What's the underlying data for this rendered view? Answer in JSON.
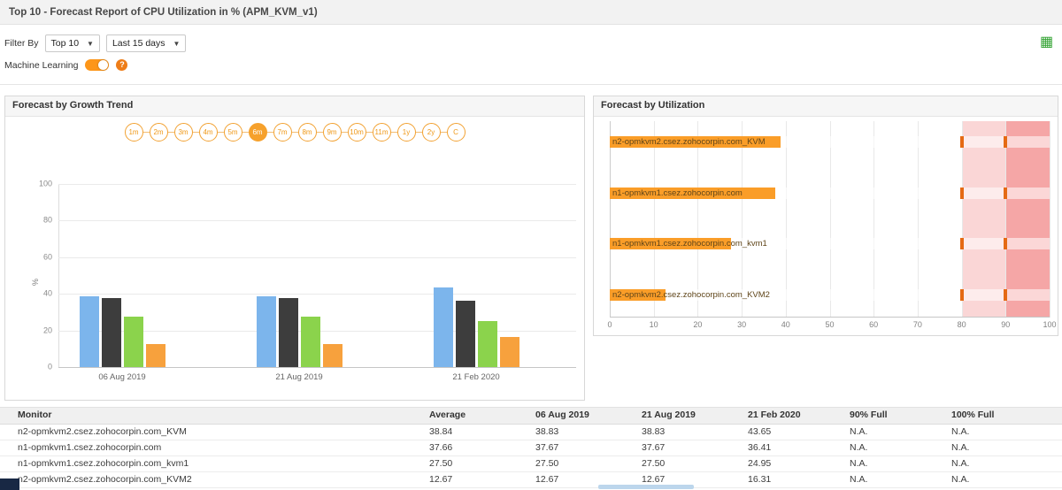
{
  "header": {
    "title": "Top 10 - Forecast Report of CPU Utilization in % (APM_KVM_v1)"
  },
  "toolbar": {
    "filter_by_label": "Filter By",
    "top_filter_value": "Top 10",
    "period_filter_value": "Last 15 days",
    "machine_learning_label": "Machine Learning"
  },
  "icons": {
    "caret_glyph": "▼",
    "export_glyph": "▦",
    "help_glyph": "?"
  },
  "colors": {
    "accent_orange": "#f6a12c",
    "toggle_orange": "#fd9619",
    "series": [
      "#7cb5ec",
      "#3d3d3d",
      "#8bd34c",
      "#f7a13d"
    ],
    "util_bar": "#fa9d28",
    "threshold_mark": "#e56a14",
    "band_warning": "rgba(237,92,92,0.25)",
    "band_critical": "rgba(237,92,92,0.55)"
  },
  "growth_panel": {
    "title": "Forecast by Growth Trend",
    "periods": [
      "1m",
      "2m",
      "3m",
      "4m",
      "5m",
      "6m",
      "7m",
      "8m",
      "9m",
      "10m",
      "11m",
      "1y",
      "2y",
      "C"
    ],
    "selected_period": "6m"
  },
  "util_panel": {
    "title": "Forecast by Utilization"
  },
  "chart_data": [
    {
      "type": "bar",
      "title": "Forecast by Growth Trend",
      "xlabel": "",
      "ylabel": "%",
      "ylim": [
        0,
        100
      ],
      "yticks": [
        0,
        20,
        40,
        60,
        80,
        100
      ],
      "grid": true,
      "legend": "none",
      "categories": [
        "06 Aug 2019",
        "21 Aug 2019",
        "21 Feb 2020"
      ],
      "series": [
        {
          "name": "n2-opmkvm2.csez.zohocorpin.com_KVM",
          "values": [
            38.83,
            38.83,
            43.65
          ]
        },
        {
          "name": "n1-opmkvm1.csez.zohocorpin.com",
          "values": [
            37.67,
            37.67,
            36.41
          ]
        },
        {
          "name": "n1-opmkvm1.csez.zohocorpin.com_kvm1",
          "values": [
            27.5,
            27.5,
            24.95
          ]
        },
        {
          "name": "n2-opmkvm2.csez.zohocorpin.com_KVM2",
          "values": [
            12.67,
            12.67,
            16.31
          ]
        }
      ]
    },
    {
      "type": "bar",
      "orientation": "horizontal",
      "title": "Forecast by Utilization",
      "xlim": [
        0,
        100
      ],
      "xticks": [
        0,
        10,
        20,
        30,
        40,
        50,
        60,
        70,
        80,
        90,
        100
      ],
      "grid": true,
      "bands": [
        {
          "from": 80,
          "to": 90,
          "level": "warning"
        },
        {
          "from": 90,
          "to": 100,
          "level": "critical"
        }
      ],
      "threshold_marks": [
        80,
        90
      ],
      "bars": [
        {
          "label": "n2-opmkvm2.csez.zohocorpin.com_KVM",
          "value": 38.84
        },
        {
          "label": "n1-opmkvm1.csez.zohocorpin.com",
          "value": 37.66
        },
        {
          "label": "n1-opmkvm1.csez.zohocorpin.com_kvm1",
          "value": 27.5
        },
        {
          "label": "n2-opmkvm2.csez.zohocorpin.com_KVM2",
          "value": 12.67
        }
      ]
    }
  ],
  "table": {
    "columns": [
      "Monitor",
      "Average",
      "06 Aug 2019",
      "21 Aug 2019",
      "21 Feb 2020",
      "90% Full",
      "100% Full"
    ],
    "rows": [
      [
        "n2-opmkvm2.csez.zohocorpin.com_KVM",
        "38.84",
        "38.83",
        "38.83",
        "43.65",
        "N.A.",
        "N.A."
      ],
      [
        "n1-opmkvm1.csez.zohocorpin.com",
        "37.66",
        "37.67",
        "37.67",
        "36.41",
        "N.A.",
        "N.A."
      ],
      [
        "n1-opmkvm1.csez.zohocorpin.com_kvm1",
        "27.50",
        "27.50",
        "27.50",
        "24.95",
        "N.A.",
        "N.A."
      ],
      [
        "n2-opmkvm2.csez.zohocorpin.com_KVM2",
        "12.67",
        "12.67",
        "12.67",
        "16.31",
        "N.A.",
        "N.A."
      ]
    ]
  }
}
